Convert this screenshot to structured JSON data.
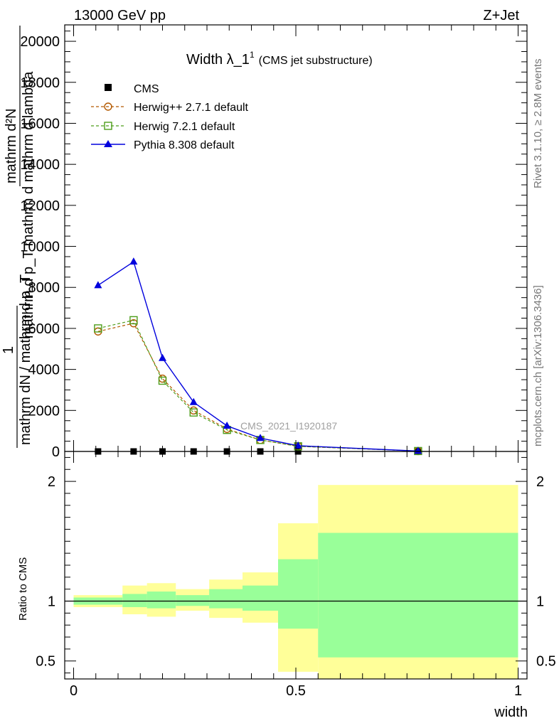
{
  "header": {
    "left": "13000 GeV pp",
    "right": "Z+Jet"
  },
  "title": {
    "main": "Width λ_1",
    "superscript": "1",
    "sub": "(CMS jet substructure)"
  },
  "side_labels": {
    "rivet": "Rivet 3.1.10, ≥ 2.8M events",
    "mcplots": "mcplots.cern.ch [arXiv:1306.3436]"
  },
  "watermark": "CMS_2021_I1920187",
  "axes": {
    "ylabel_top_line1": "mathrm d²N",
    "ylabel_top_line2": "mathrm d p_T mathrm d mathrm d lambda",
    "ylabel_one": "1",
    "ylabel_bottom": "mathrm dN / mathrm d p_T",
    "ratio_ylabel": "Ratio to CMS",
    "xlabel": "width"
  },
  "colors": {
    "herwig_pp": "#b35900",
    "herwig7": "#4d9d1a",
    "pythia": "#0000dd",
    "band_outer": "#ffff99",
    "band_inner": "#99ff99"
  },
  "chart_data": [
    {
      "type": "line",
      "panel": "main",
      "xlim": [
        -0.02,
        1.02
      ],
      "ylim": [
        0,
        20800
      ],
      "yticks": [
        0,
        2000,
        4000,
        6000,
        8000,
        10000,
        12000,
        14000,
        16000,
        18000,
        20000
      ],
      "ytick_labels": [
        "0",
        "2000",
        "4000",
        "6000",
        "8000",
        "10000",
        "12000",
        "14000",
        "16000",
        "18000",
        "20000"
      ],
      "xticks": [
        0,
        0.5,
        1
      ],
      "legend_position": "top-left",
      "series": [
        {
          "name": "CMS",
          "marker": "filled-square",
          "x": [
            0.055,
            0.135,
            0.2,
            0.27,
            0.345,
            0.42,
            0.505,
            0.775
          ],
          "y": [
            0,
            0,
            0,
            0,
            0,
            0,
            0,
            0
          ]
        },
        {
          "name": "Herwig++ 2.7.1 default",
          "marker": "open-circle",
          "line": "dashed",
          "x": [
            0.055,
            0.135,
            0.2,
            0.27,
            0.345,
            0.42,
            0.505,
            0.775
          ],
          "y": [
            5850,
            6250,
            3550,
            2000,
            1100,
            560,
            250,
            20
          ]
        },
        {
          "name": "Herwig 7.2.1 default",
          "marker": "open-square",
          "line": "dashed",
          "x": [
            0.055,
            0.135,
            0.2,
            0.27,
            0.345,
            0.42,
            0.505,
            0.775
          ],
          "y": [
            6000,
            6400,
            3450,
            1900,
            1050,
            560,
            250,
            20
          ]
        },
        {
          "name": "Pythia 8.308 default",
          "marker": "filled-triangle",
          "line": "solid",
          "x": [
            0.055,
            0.135,
            0.2,
            0.27,
            0.345,
            0.42,
            0.505,
            0.775
          ],
          "y": [
            8100,
            9250,
            4550,
            2400,
            1250,
            650,
            280,
            20
          ]
        }
      ]
    },
    {
      "type": "area",
      "panel": "ratio",
      "xlim": [
        -0.02,
        1.02
      ],
      "ylim": [
        0.35,
        2.25
      ],
      "yticks": [
        0.5,
        1,
        2
      ],
      "ytick_labels": [
        "0.5",
        "1",
        "2"
      ],
      "xticks": [
        0,
        0.5,
        1
      ],
      "xtick_labels": [
        "0",
        "0.5",
        "1"
      ],
      "reference_line": 1,
      "bins": [
        {
          "x0": 0.0,
          "x1": 0.11,
          "outer": [
            0.95,
            1.05
          ],
          "inner": [
            0.97,
            1.03
          ]
        },
        {
          "x0": 0.11,
          "x1": 0.165,
          "outer": [
            0.89,
            1.13
          ],
          "inner": [
            0.95,
            1.06
          ]
        },
        {
          "x0": 0.165,
          "x1": 0.23,
          "outer": [
            0.87,
            1.15
          ],
          "inner": [
            0.94,
            1.08
          ]
        },
        {
          "x0": 0.23,
          "x1": 0.305,
          "outer": [
            0.92,
            1.1
          ],
          "inner": [
            0.96,
            1.05
          ]
        },
        {
          "x0": 0.305,
          "x1": 0.38,
          "outer": [
            0.86,
            1.18
          ],
          "inner": [
            0.94,
            1.1
          ]
        },
        {
          "x0": 0.38,
          "x1": 0.46,
          "outer": [
            0.82,
            1.24
          ],
          "inner": [
            0.92,
            1.13
          ]
        },
        {
          "x0": 0.46,
          "x1": 0.55,
          "outer": [
            0.41,
            1.65
          ],
          "inner": [
            0.77,
            1.35
          ]
        },
        {
          "x0": 0.55,
          "x1": 1.0,
          "outer": [
            0.35,
            1.97
          ],
          "inner": [
            0.53,
            1.57
          ]
        }
      ]
    }
  ]
}
